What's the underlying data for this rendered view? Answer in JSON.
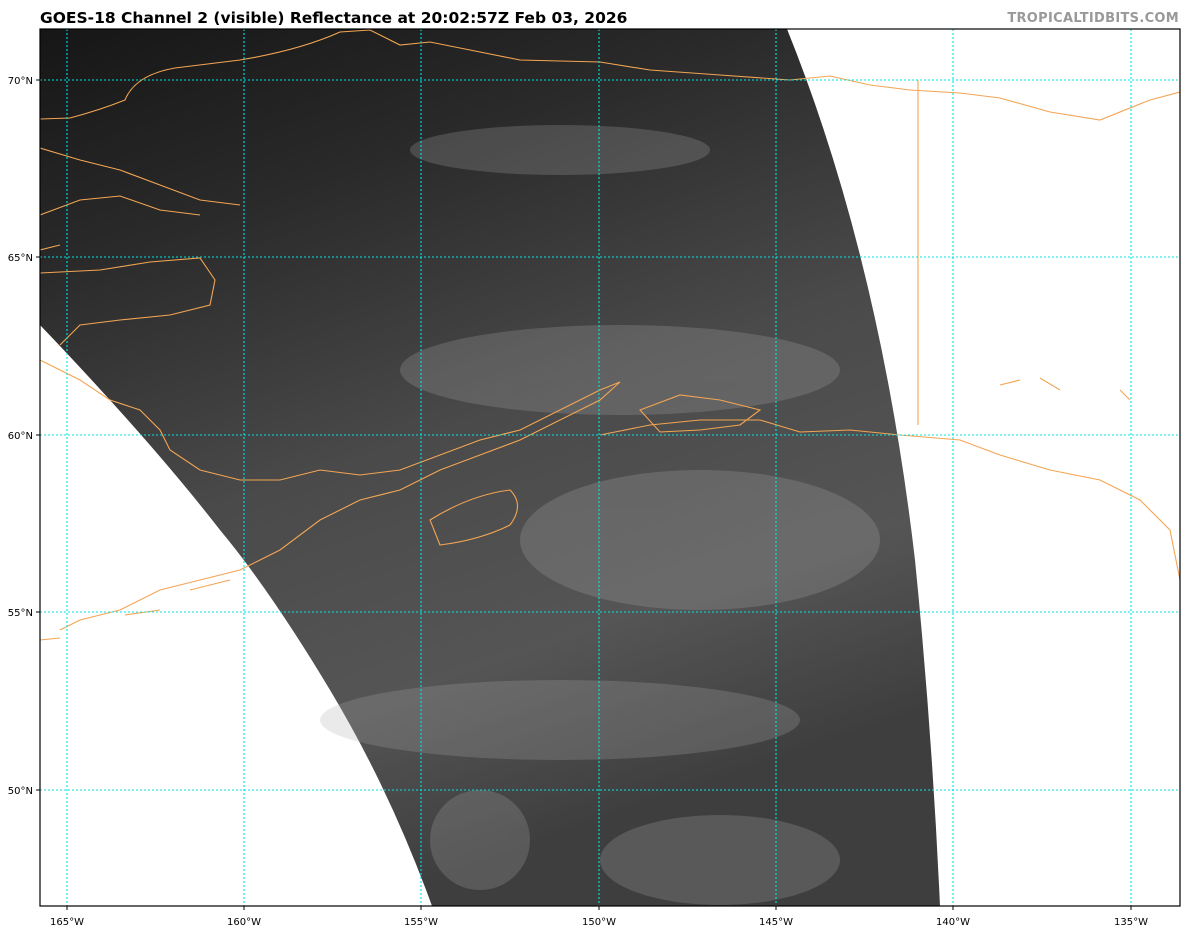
{
  "header": {
    "title": "GOES-18 Channel 2 (visible) Reflectance at 20:02:57Z Feb 03, 2026",
    "credit": "TROPICALTIDBITS.COM"
  },
  "map": {
    "satellite": "GOES-18",
    "channel": "Channel 2 (visible) Reflectance",
    "valid_time": "20:02:57Z Feb 03, 2026",
    "lon_range": [
      -165.75,
      -133.6
    ],
    "lat_range": [
      46.6,
      71.4
    ],
    "gridlines": true,
    "colors": {
      "coastline": "#f2a553",
      "gridline": "#00e5e5",
      "imagery_dark": "#1c1c1c",
      "imagery_light": "#6a6a6a"
    },
    "lat_ticks": [
      "70°N",
      "65°N",
      "60°N",
      "55°N",
      "50°N"
    ],
    "lon_ticks": [
      "165°W",
      "160°W",
      "155°W",
      "150°W",
      "145°W",
      "140°W",
      "135°W"
    ]
  }
}
